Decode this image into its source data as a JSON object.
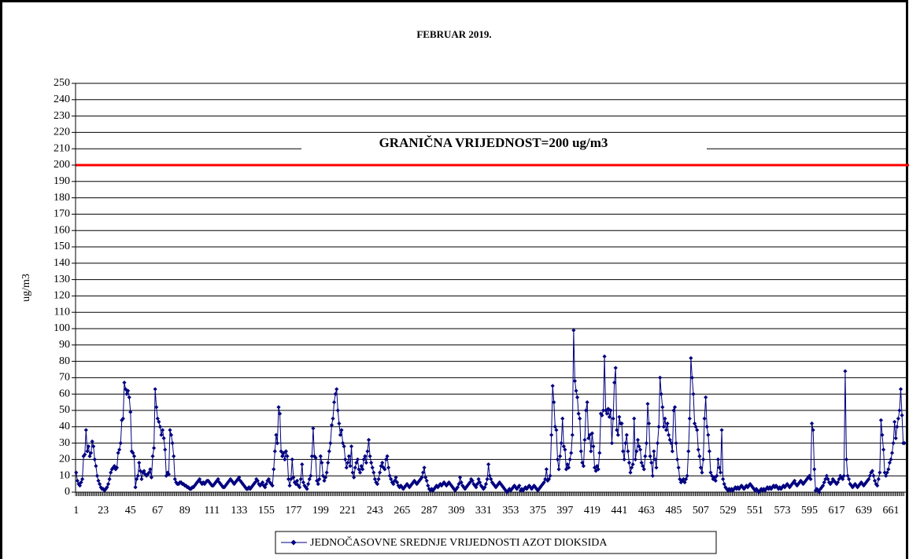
{
  "chart_data": {
    "type": "line",
    "title": "FEBRUAR 2019.",
    "y_label": "ug/m3",
    "threshold": {
      "value": 200,
      "label": "GRANIČNA VRIJEDNOST=200 ug/m3",
      "color": "#ff0000"
    },
    "ylim": [
      0,
      250
    ],
    "yticks": [
      0,
      10,
      20,
      30,
      40,
      50,
      60,
      70,
      80,
      90,
      100,
      110,
      120,
      130,
      140,
      150,
      160,
      170,
      180,
      190,
      200,
      210,
      220,
      230,
      240,
      250
    ],
    "grid": true,
    "legend": "bottom",
    "categories": [
      "1",
      null,
      null,
      null,
      null,
      null,
      null,
      null,
      null,
      null,
      null,
      null,
      null,
      null,
      null,
      null,
      null,
      null,
      null,
      null,
      null,
      null,
      "23",
      null,
      null,
      null,
      null,
      null,
      null,
      null,
      null,
      null,
      null,
      null,
      null,
      null,
      null,
      null,
      null,
      null,
      null,
      null,
      null,
      null,
      "45",
      null,
      null,
      null,
      null,
      null,
      null,
      null,
      null,
      null,
      null,
      null,
      null,
      null,
      null,
      null,
      null,
      null,
      null,
      null,
      null,
      null,
      "67",
      null,
      null,
      null,
      null,
      null,
      null,
      null,
      null,
      null,
      null,
      null,
      null,
      null,
      null,
      null,
      null,
      null,
      null,
      null,
      null,
      null,
      "89",
      null,
      null,
      null,
      null,
      null,
      null,
      null,
      null,
      null,
      null,
      null,
      null,
      null,
      null,
      null,
      null,
      null,
      null,
      null,
      null,
      null,
      "111",
      null,
      null,
      null,
      null,
      null,
      null,
      null,
      null,
      null,
      null,
      null,
      null,
      null,
      null,
      null,
      null,
      null,
      null,
      null,
      null,
      null,
      "133",
      null,
      null,
      null,
      null,
      null,
      null,
      null,
      null,
      null,
      null,
      null,
      null,
      null,
      null,
      null,
      null,
      null,
      null,
      null,
      null,
      null,
      "155",
      null,
      null,
      null,
      null,
      null,
      null,
      null,
      null,
      null,
      null,
      null,
      null,
      null,
      null,
      null,
      null,
      null,
      null,
      null,
      null,
      null,
      "177",
      null,
      null,
      null,
      null,
      null,
      null,
      null,
      null,
      null,
      null,
      null,
      null,
      null,
      null,
      null,
      null,
      null,
      null,
      null,
      null,
      null,
      "199",
      null,
      null,
      null,
      null,
      null,
      null,
      null,
      null,
      null,
      null,
      null,
      null,
      null,
      null,
      null,
      null,
      null,
      null,
      null,
      null,
      null,
      "221",
      null,
      null,
      null,
      null,
      null,
      null,
      null,
      null,
      null,
      null,
      null,
      null,
      null,
      null,
      null,
      null,
      null,
      null,
      null,
      null,
      null,
      "243",
      null,
      null,
      null,
      null,
      null,
      null,
      null,
      null,
      null,
      null,
      null,
      null,
      null,
      null,
      null,
      null,
      null,
      null,
      null,
      null,
      null,
      "265",
      null,
      null,
      null,
      null,
      null,
      null,
      null,
      null,
      null,
      null,
      null,
      null,
      null,
      null,
      null,
      null,
      null,
      null,
      null,
      null,
      null,
      "287",
      null,
      null,
      null,
      null,
      null,
      null,
      null,
      null,
      null,
      null,
      null,
      null,
      null,
      null,
      null,
      null,
      null,
      null,
      null,
      null,
      null,
      "309",
      null,
      null,
      null,
      null,
      null,
      null,
      null,
      null,
      null,
      null,
      null,
      null,
      null,
      null,
      null,
      null,
      null,
      null,
      null,
      null,
      null,
      "331",
      null,
      null,
      null,
      null,
      null,
      null,
      null,
      null,
      null,
      null,
      null,
      null,
      null,
      null,
      null,
      null,
      null,
      null,
      null,
      null,
      null,
      "353",
      null,
      null,
      null,
      null,
      null,
      null,
      null,
      null,
      null,
      null,
      null,
      null,
      null,
      null,
      null,
      null,
      null,
      null,
      null,
      null,
      null,
      "375",
      null,
      null,
      null,
      null,
      null,
      null,
      null,
      null,
      null,
      null,
      null,
      null,
      null,
      null,
      null,
      null,
      null,
      null,
      null,
      null,
      null,
      "397",
      null,
      null,
      null,
      null,
      null,
      null,
      null,
      null,
      null,
      null,
      null,
      null,
      null,
      null,
      null,
      null,
      null,
      null,
      null,
      null,
      null,
      "419",
      null,
      null,
      null,
      null,
      null,
      null,
      null,
      null,
      null,
      null,
      null,
      null,
      null,
      null,
      null,
      null,
      null,
      null,
      null,
      null,
      null,
      "441",
      null,
      null,
      null,
      null,
      null,
      null,
      null,
      null,
      null,
      null,
      null,
      null,
      null,
      null,
      null,
      null,
      null,
      null,
      null,
      null,
      null,
      "463",
      null,
      null,
      null,
      null,
      null,
      null,
      null,
      null,
      null,
      null,
      null,
      null,
      null,
      null,
      null,
      null,
      null,
      null,
      null,
      null,
      null,
      "485",
      null,
      null,
      null,
      null,
      null,
      null,
      null,
      null,
      null,
      null,
      null,
      null,
      null,
      null,
      null,
      null,
      null,
      null,
      null,
      null,
      null,
      "507",
      null,
      null,
      null,
      null,
      null,
      null,
      null,
      null,
      null,
      null,
      null,
      null,
      null,
      null,
      null,
      null,
      null,
      null,
      null,
      null,
      null,
      "529",
      null,
      null,
      null,
      null,
      null,
      null,
      null,
      null,
      null,
      null,
      null,
      null,
      null,
      null,
      null,
      null,
      null,
      null,
      null,
      null,
      null,
      "551",
      null,
      null,
      null,
      null,
      null,
      null,
      null,
      null,
      null,
      null,
      null,
      null,
      null,
      null,
      null,
      null,
      null,
      null,
      null,
      null,
      null,
      "573",
      null,
      null,
      null,
      null,
      null,
      null,
      null,
      null,
      null,
      null,
      null,
      null,
      null,
      null,
      null,
      null,
      null,
      null,
      null,
      null,
      null,
      "595",
      null,
      null,
      null,
      null,
      null,
      null,
      null,
      null,
      null,
      null,
      null,
      null,
      null,
      null,
      null,
      null,
      null,
      null,
      null,
      null,
      null,
      "617",
      null,
      null,
      null,
      null,
      null,
      null,
      null,
      null,
      null,
      null,
      null,
      null,
      null,
      null,
      null,
      null,
      null,
      null,
      null,
      null,
      null,
      "639",
      null,
      null,
      null,
      null,
      null,
      null,
      null,
      null,
      null,
      null,
      null,
      null,
      null,
      null,
      null,
      null,
      null,
      null,
      null,
      null,
      null,
      "661",
      null,
      null,
      null,
      null,
      null,
      null,
      null,
      null,
      null,
      null,
      null
    ],
    "series": [
      {
        "name": "JEDNOČASOVNE SREDNJE VRIJEDNOSTI AZOT DIOKSIDA",
        "color": "#000080",
        "values": [
          12,
          7,
          5,
          4,
          6,
          8,
          22,
          23,
          38,
          25,
          28,
          22,
          24,
          31,
          28,
          20,
          16,
          10,
          7,
          5,
          3,
          2,
          2,
          1,
          2,
          3,
          5,
          8,
          12,
          14,
          15,
          16,
          14,
          15,
          24,
          26,
          30,
          44,
          45,
          67,
          63,
          60,
          62,
          58,
          49,
          25,
          24,
          22,
          3,
          8,
          10,
          18,
          13,
          8,
          12,
          13,
          11,
          10,
          11,
          12,
          14,
          9,
          22,
          27,
          63,
          52,
          45,
          43,
          40,
          35,
          38,
          33,
          26,
          10,
          12,
          11,
          38,
          35,
          30,
          22,
          8,
          6,
          5,
          5,
          6,
          6,
          5,
          5,
          4,
          4,
          3,
          3,
          2,
          2,
          3,
          3,
          4,
          5,
          6,
          7,
          8,
          6,
          5,
          6,
          5,
          6,
          7,
          7,
          6,
          5,
          4,
          4,
          5,
          6,
          7,
          8,
          6,
          5,
          4,
          3,
          3,
          4,
          5,
          6,
          7,
          8,
          7,
          6,
          5,
          6,
          7,
          8,
          9,
          7,
          6,
          5,
          4,
          3,
          2,
          2,
          3,
          2,
          3,
          4,
          5,
          6,
          8,
          7,
          5,
          4,
          5,
          6,
          4,
          3,
          5,
          7,
          8,
          6,
          5,
          4,
          14,
          25,
          35,
          30,
          52,
          48,
          25,
          22,
          24,
          20,
          25,
          22,
          8,
          4,
          8,
          20,
          9,
          6,
          5,
          7,
          4,
          3,
          8,
          17,
          6,
          4,
          3,
          2,
          5,
          8,
          10,
          22,
          39,
          22,
          21,
          7,
          5,
          8,
          22,
          18,
          10,
          7,
          9,
          12,
          18,
          25,
          30,
          41,
          45,
          55,
          60,
          63,
          50,
          42,
          35,
          38,
          30,
          28,
          20,
          15,
          18,
          22,
          16,
          28,
          12,
          9,
          15,
          18,
          20,
          14,
          12,
          16,
          14,
          20,
          22,
          18,
          25,
          32,
          22,
          18,
          15,
          12,
          8,
          6,
          5,
          8,
          12,
          16,
          18,
          15,
          14,
          20,
          22,
          15,
          10,
          8,
          6,
          5,
          7,
          9,
          6,
          4,
          3,
          4,
          3,
          2,
          3,
          4,
          5,
          4,
          3,
          4,
          5,
          6,
          7,
          6,
          5,
          6,
          7,
          8,
          9,
          12,
          15,
          9,
          7,
          4,
          2,
          1,
          2,
          1,
          2,
          3,
          4,
          3,
          4,
          5,
          4,
          5,
          6,
          5,
          4,
          5,
          6,
          5,
          4,
          3,
          2,
          1,
          2,
          3,
          5,
          9,
          6,
          4,
          3,
          2,
          3,
          4,
          5,
          6,
          8,
          7,
          5,
          4,
          3,
          5,
          8,
          6,
          4,
          3,
          2,
          3,
          5,
          8,
          17,
          10,
          8,
          6,
          5,
          4,
          3,
          4,
          5,
          6,
          5,
          4,
          3,
          2,
          1,
          0,
          1,
          2,
          1,
          2,
          3,
          4,
          3,
          2,
          3,
          4,
          1,
          2,
          1,
          2,
          3,
          2,
          3,
          4,
          3,
          2,
          3,
          4,
          3,
          2,
          1,
          2,
          3,
          4,
          5,
          6,
          8,
          14,
          7,
          8,
          10,
          35,
          65,
          55,
          40,
          38,
          20,
          14,
          22,
          30,
          45,
          28,
          26,
          14,
          17,
          15,
          20,
          24,
          35,
          99,
          68,
          62,
          58,
          48,
          45,
          25,
          18,
          16,
          32,
          50,
          55,
          33,
          35,
          25,
          36,
          28,
          15,
          13,
          16,
          14,
          24,
          48,
          47,
          50,
          83,
          50,
          48,
          51,
          46,
          50,
          30,
          45,
          67,
          76,
          38,
          35,
          46,
          42,
          42,
          25,
          20,
          30,
          35,
          25,
          18,
          12,
          15,
          17,
          45,
          20,
          25,
          32,
          28,
          26,
          18,
          16,
          14,
          22,
          30,
          54,
          42,
          22,
          18,
          10,
          25,
          20,
          15,
          30,
          40,
          70,
          60,
          52,
          40,
          45,
          38,
          42,
          35,
          32,
          30,
          25,
          50,
          52,
          30,
          20,
          15,
          8,
          6,
          7,
          8,
          6,
          8,
          10,
          25,
          45,
          82,
          70,
          60,
          42,
          40,
          38,
          26,
          22,
          15,
          12,
          20,
          45,
          58,
          40,
          35,
          25,
          12,
          10,
          8,
          9,
          7,
          10,
          20,
          15,
          12,
          38,
          8,
          5,
          3,
          2,
          1,
          2,
          1,
          2,
          1,
          2,
          3,
          2,
          3,
          2,
          3,
          4,
          3,
          2,
          3,
          4,
          3,
          4,
          5,
          4,
          3,
          2,
          1,
          2,
          1,
          0,
          1,
          2,
          1,
          2,
          1,
          2,
          3,
          2,
          3,
          2,
          3,
          4,
          3,
          4,
          3,
          2,
          3,
          2,
          3,
          4,
          3,
          4,
          5,
          4,
          3,
          4,
          5,
          6,
          7,
          5,
          4,
          5,
          6,
          7,
          6,
          5,
          6,
          7,
          8,
          9,
          10,
          8,
          42,
          38,
          14,
          1,
          2,
          1,
          0,
          2,
          3,
          4,
          6,
          8,
          10,
          8,
          6,
          5,
          6,
          8,
          7,
          6,
          5,
          6,
          8,
          10,
          9,
          8,
          10,
          74,
          20,
          10,
          8,
          5,
          4,
          3,
          4,
          5,
          4,
          3,
          4,
          5,
          6,
          5,
          4,
          5,
          6,
          7,
          8,
          10,
          12,
          13,
          10,
          7,
          5,
          4,
          8,
          12,
          44,
          35,
          26,
          12,
          10,
          12,
          14,
          18,
          20,
          24,
          30,
          43,
          33,
          40,
          45,
          50,
          63,
          47,
          30,
          30
        ]
      }
    ]
  }
}
